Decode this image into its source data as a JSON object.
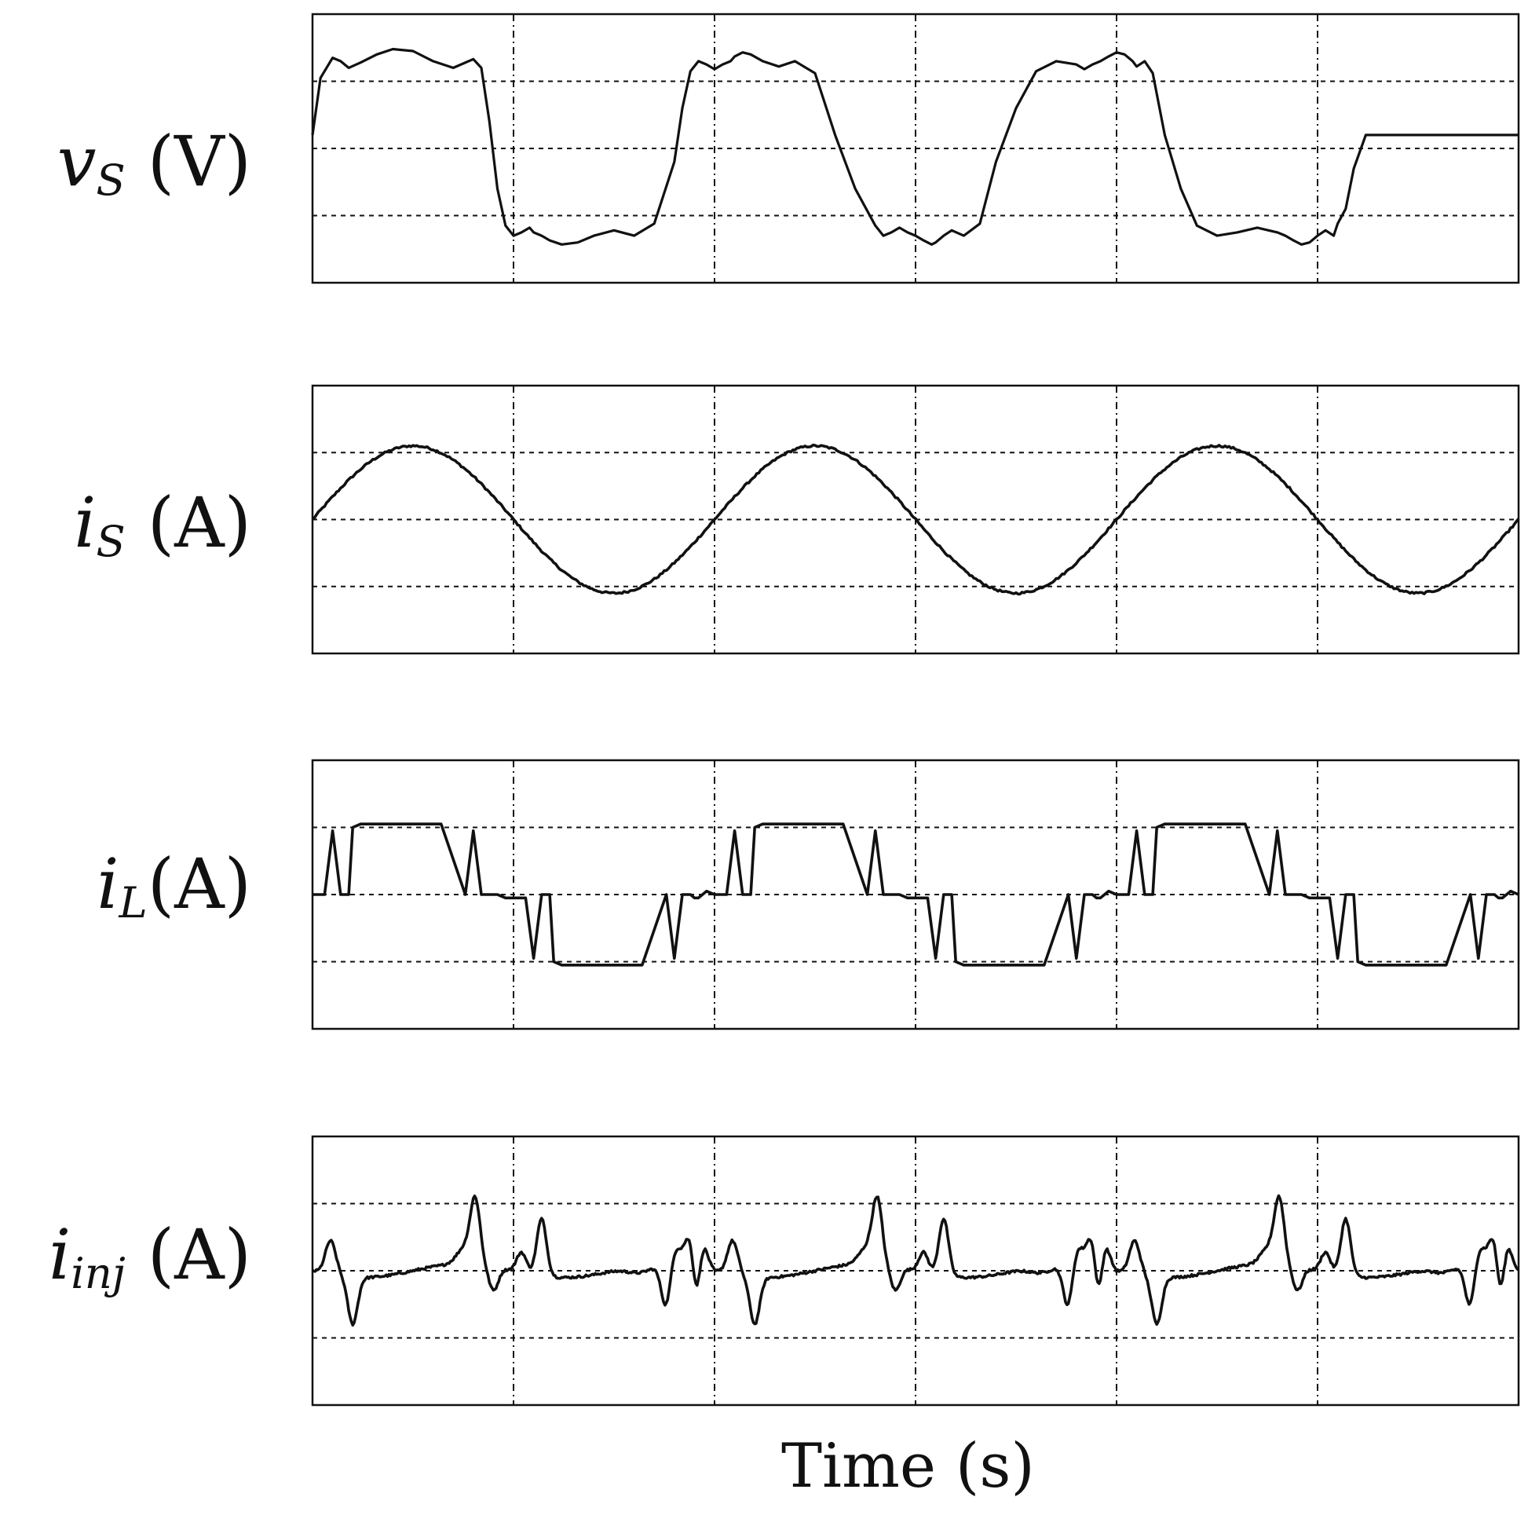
{
  "chart_data": [
    {
      "type": "line",
      "ylabel": {
        "symbol": "v",
        "sub": "S",
        "unit": "(V)"
      },
      "xlim": [
        0,
        3
      ],
      "ylim": [
        -2,
        2
      ],
      "x_gridlines": [
        0.5,
        1,
        1.5,
        2,
        2.5
      ],
      "y_gridlines": [
        -1,
        0,
        1
      ],
      "grid": true,
      "series": [
        {
          "x": [
            0.0,
            0.02,
            0.05,
            0.07,
            0.09,
            0.12,
            0.16,
            0.2,
            0.25,
            0.3,
            0.35,
            0.4,
            0.42,
            0.44,
            0.46,
            0.48,
            0.5,
            0.52,
            0.54,
            0.55,
            0.57,
            0.59,
            0.62,
            0.66,
            0.7,
            0.75,
            0.8,
            0.85,
            0.9,
            0.92,
            0.94,
            0.96,
            0.98,
            1.0,
            1.02,
            1.04,
            1.05,
            1.07,
            1.09,
            1.12,
            1.16,
            1.2,
            1.25,
            1.3,
            1.35,
            1.4,
            1.42,
            1.44,
            1.46,
            1.48,
            1.5,
            1.52,
            1.54,
            1.55,
            1.57,
            1.59,
            1.62,
            1.66,
            1.7,
            1.75,
            1.8,
            1.85,
            1.9,
            1.92,
            1.94,
            1.96,
            1.98,
            2.0,
            2.02,
            2.04,
            2.05,
            2.07,
            2.09,
            2.12,
            2.16,
            2.2,
            2.25,
            2.3,
            2.35,
            2.4,
            2.42,
            2.44,
            2.46,
            2.48,
            2.5,
            2.52,
            2.54,
            2.55,
            2.57,
            2.59,
            2.62,
            2.66,
            2.7,
            2.75,
            2.8,
            2.85,
            2.9,
            2.92,
            2.94,
            2.96,
            2.98,
            3.0
          ],
          "y": [
            0.2,
            1.05,
            1.35,
            1.3,
            1.2,
            1.28,
            1.4,
            1.48,
            1.45,
            1.3,
            1.2,
            1.33,
            1.2,
            0.4,
            -0.6,
            -1.15,
            -1.3,
            -1.25,
            -1.18,
            -1.25,
            -1.3,
            -1.37,
            -1.43,
            -1.4,
            -1.3,
            -1.22,
            -1.3,
            -1.12,
            -0.2,
            0.6,
            1.15,
            1.3,
            1.25,
            1.18,
            1.25,
            1.3,
            1.37,
            1.43,
            1.4,
            1.3,
            1.22,
            1.3,
            1.12,
            0.2,
            -0.6,
            -1.15,
            -1.3,
            -1.25,
            -1.18,
            -1.25,
            -1.3,
            -1.37,
            -1.43,
            -1.4,
            -1.3,
            -1.22,
            -1.3,
            -1.12,
            -0.2,
            0.6,
            1.15,
            1.3,
            1.25,
            1.18,
            1.25,
            1.3,
            1.37,
            1.43,
            1.4,
            1.3,
            1.22,
            1.3,
            1.12,
            0.2,
            -0.6,
            -1.15,
            -1.3,
            -1.25,
            -1.18,
            -1.25,
            -1.3,
            -1.37,
            -1.43,
            -1.4,
            -1.3,
            -1.22,
            -1.3,
            -1.12,
            -0.9,
            -0.3,
            0.2,
            0.2,
            0.2,
            0.2,
            0.2,
            0.2,
            0.2,
            0.2,
            0.2,
            0.2,
            0.2,
            0.2
          ]
        }
      ]
    },
    {
      "type": "line",
      "ylabel": {
        "symbol": "i",
        "sub": "S",
        "unit": "(A)"
      },
      "xlim": [
        0,
        3
      ],
      "ylim": [
        -2,
        2
      ],
      "x_gridlines": [
        0.5,
        1,
        1.5,
        2,
        2.5
      ],
      "y_gridlines": [
        -1,
        0,
        1
      ],
      "grid": true,
      "series": [
        {
          "x": [],
          "y": []
        }
      ]
    },
    {
      "type": "line",
      "ylabel": {
        "symbol": "i",
        "sub": "L",
        "unit": "(A)"
      },
      "xlim": [
        0,
        3
      ],
      "ylim": [
        -2,
        2
      ],
      "x_gridlines": [
        0.5,
        1,
        1.5,
        2,
        2.5
      ],
      "y_gridlines": [
        -1,
        0,
        1
      ],
      "grid": true,
      "series": [
        {
          "x": [
            0.0,
            0.03,
            0.05,
            0.07,
            0.09,
            0.1,
            0.12,
            0.14,
            0.16,
            0.32,
            0.38,
            0.4,
            0.42,
            0.44,
            0.45,
            0.46,
            0.48,
            0.5,
            0.53,
            0.55,
            0.57,
            0.59,
            0.6,
            0.62,
            0.64,
            0.66,
            0.82,
            0.88,
            0.9,
            0.92,
            0.94,
            0.95,
            0.96,
            0.98,
            1.0
          ],
          "y": [
            0.0,
            0.0,
            0.95,
            0.0,
            0.0,
            1.0,
            1.05,
            1.05,
            1.05,
            1.05,
            0.0,
            0.95,
            0.0,
            0.0,
            0.0,
            0.0,
            -0.05,
            -0.05,
            -0.05,
            -0.95,
            0.0,
            0.0,
            -1.0,
            -1.05,
            -1.05,
            -1.05,
            -1.05,
            0.0,
            -0.95,
            0.0,
            0.0,
            -0.05,
            -0.05,
            0.05,
            0.0
          ]
        }
      ],
      "periodic_note": ""
    },
    {
      "type": "line",
      "ylabel": {
        "symbol": "i",
        "sub": "inj",
        "unit": "(A)"
      },
      "xlim": [
        0,
        3
      ],
      "ylim": [
        -2,
        2
      ],
      "x_gridlines": [
        0.5,
        1,
        1.5,
        2,
        2.5
      ],
      "y_gridlines": [
        -1,
        0,
        1
      ],
      "grid": true,
      "series": [
        {
          "x": [],
          "y": []
        }
      ]
    }
  ],
  "xlabel": "Time (s)"
}
